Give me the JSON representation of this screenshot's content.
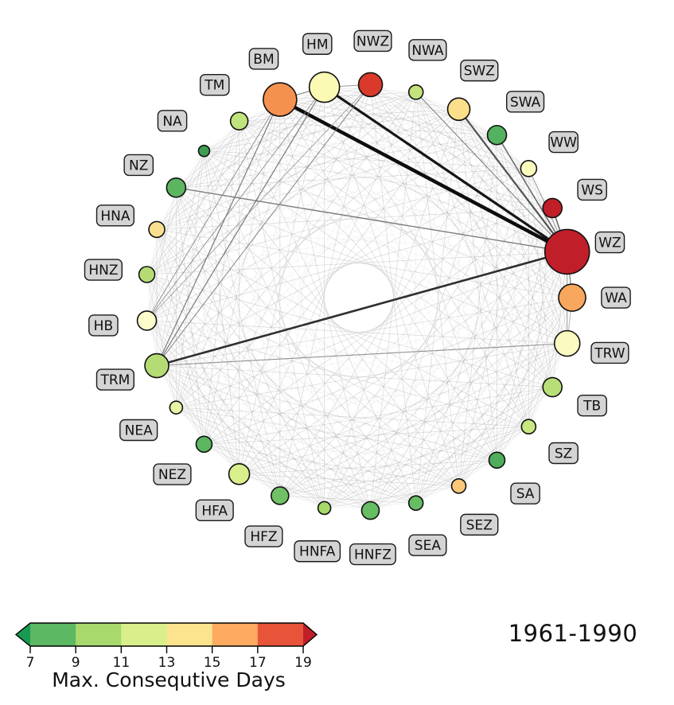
{
  "title": {
    "year_range": "1961-1990"
  },
  "colorbar": {
    "label": "Max. Consequtive Days",
    "ticks": [
      7,
      9,
      11,
      13,
      15,
      17,
      19
    ],
    "segment_colors": [
      "#5db863",
      "#a8d96d",
      "#d9ef8b",
      "#fbe48d",
      "#fcab60",
      "#e8543a"
    ],
    "under_arrow_color": "#189a50",
    "over_arrow_color": "#c01f2a"
  },
  "chart_data": {
    "type": "network",
    "layout": "circular",
    "title": "1961-1990",
    "value_label": "Max. Consequtive Days",
    "value_range": [
      7,
      19
    ],
    "nodes": [
      {
        "id": "BM",
        "value": 16,
        "color": "#f5914f",
        "radius": 21
      },
      {
        "id": "HM",
        "value": 13,
        "color": "#fbfab4",
        "radius": 19
      },
      {
        "id": "NWZ",
        "value": 18,
        "color": "#d93a2b",
        "radius": 15
      },
      {
        "id": "NWA",
        "value": 10,
        "color": "#c3e47d",
        "radius": 9
      },
      {
        "id": "SWZ",
        "value": 14,
        "color": "#fbdf8b",
        "radius": 14
      },
      {
        "id": "SWA",
        "value": 8,
        "color": "#53b15f",
        "radius": 12
      },
      {
        "id": "WW",
        "value": 13,
        "color": "#fdfdbe",
        "radius": 10
      },
      {
        "id": "WS",
        "value": 19,
        "color": "#c01f2a",
        "radius": 12
      },
      {
        "id": "WZ",
        "value": 19,
        "color": "#c01f2a",
        "radius": 28
      },
      {
        "id": "WA",
        "value": 16,
        "color": "#f9a75e",
        "radius": 17
      },
      {
        "id": "TRW",
        "value": 13,
        "color": "#fbfbc1",
        "radius": 16
      },
      {
        "id": "TB",
        "value": 10,
        "color": "#b8df77",
        "radius": 12
      },
      {
        "id": "SZ",
        "value": 10,
        "color": "#c9e680",
        "radius": 9
      },
      {
        "id": "SA",
        "value": 8,
        "color": "#4fae5c",
        "radius": 10
      },
      {
        "id": "SEZ",
        "value": 15,
        "color": "#fbc87a",
        "radius": 9
      },
      {
        "id": "SEA",
        "value": 8,
        "color": "#66bd63",
        "radius": 9
      },
      {
        "id": "HNFZ",
        "value": 8,
        "color": "#66bd63",
        "radius": 11
      },
      {
        "id": "HNFA",
        "value": 9,
        "color": "#a6d96a",
        "radius": 8
      },
      {
        "id": "HFZ",
        "value": 8,
        "color": "#70c165",
        "radius": 11
      },
      {
        "id": "HFA",
        "value": 11,
        "color": "#d9ef8b",
        "radius": 13
      },
      {
        "id": "NEZ",
        "value": 8,
        "color": "#5cb660",
        "radius": 10
      },
      {
        "id": "NEA",
        "value": 11,
        "color": "#e7f4a3",
        "radius": 8
      },
      {
        "id": "TRM",
        "value": 10,
        "color": "#b5dc74",
        "radius": 15
      },
      {
        "id": "HB",
        "value": 13,
        "color": "#fdfccb",
        "radius": 12
      },
      {
        "id": "HNZ",
        "value": 10,
        "color": "#b5dc74",
        "radius": 10
      },
      {
        "id": "HNA",
        "value": 14,
        "color": "#fae08e",
        "radius": 10
      },
      {
        "id": "NZ",
        "value": 8,
        "color": "#5cb660",
        "radius": 12
      },
      {
        "id": "NA",
        "value": 7,
        "color": "#3f9e52",
        "radius": 7
      },
      {
        "id": "TM",
        "value": 10,
        "color": "#c0e47d",
        "radius": 11
      }
    ],
    "strong_edges": [
      {
        "source": "BM",
        "target": "WZ",
        "width": 4.5,
        "color": "#0d0d0d",
        "opacity": 1
      },
      {
        "source": "HM",
        "target": "WZ",
        "width": 3.2,
        "color": "#161616",
        "opacity": 1
      },
      {
        "source": "TRM",
        "target": "WZ",
        "width": 2.6,
        "color": "#2e2e2e",
        "opacity": 1
      },
      {
        "source": "SWZ",
        "target": "WZ",
        "width": 2.2,
        "color": "#4a4a4a",
        "opacity": 0.95
      },
      {
        "source": "WS",
        "target": "WZ",
        "width": 1.6,
        "color": "#5a5a5a",
        "opacity": 0.9
      },
      {
        "source": "SWA",
        "target": "WZ",
        "width": 1.6,
        "color": "#606060",
        "opacity": 0.9
      },
      {
        "source": "NZ",
        "target": "WZ",
        "width": 1.4,
        "color": "#6a6a6a",
        "opacity": 0.85
      },
      {
        "source": "NWA",
        "target": "WZ",
        "width": 1.2,
        "color": "#757575",
        "opacity": 0.8
      },
      {
        "source": "WW",
        "target": "WZ",
        "width": 1.0,
        "color": "#808080",
        "opacity": 0.8
      },
      {
        "source": "BM",
        "target": "HM",
        "width": 1.2,
        "color": "#707070",
        "opacity": 0.85
      },
      {
        "source": "HM",
        "target": "NWZ",
        "width": 1.0,
        "color": "#808080",
        "opacity": 0.8
      },
      {
        "source": "BM",
        "target": "TRM",
        "width": 1.3,
        "color": "#6f6f6f",
        "opacity": 0.85
      },
      {
        "source": "HM",
        "target": "TRM",
        "width": 1.3,
        "color": "#6f6f6f",
        "opacity": 0.85
      },
      {
        "source": "NWZ",
        "target": "TRM",
        "width": 1.1,
        "color": "#7a7a7a",
        "opacity": 0.8
      },
      {
        "source": "BM",
        "target": "HB",
        "width": 1.0,
        "color": "#858585",
        "opacity": 0.8
      },
      {
        "source": "HM",
        "target": "HB",
        "width": 1.0,
        "color": "#858585",
        "opacity": 0.8
      },
      {
        "source": "NWZ",
        "target": "HB",
        "width": 0.9,
        "color": "#8f8f8f",
        "opacity": 0.75
      },
      {
        "source": "TRM",
        "target": "TRW",
        "width": 1.1,
        "color": "#7a7a7a",
        "opacity": 0.8
      },
      {
        "source": "WZ",
        "target": "WA",
        "width": 1.3,
        "color": "#6f6f6f",
        "opacity": 0.85
      },
      {
        "source": "WZ",
        "target": "TRW",
        "width": 1.0,
        "color": "#858585",
        "opacity": 0.8
      },
      {
        "source": "WA",
        "target": "TRW",
        "width": 0.9,
        "color": "#8f8f8f",
        "opacity": 0.75
      }
    ],
    "background_web": [
      {
        "offsets": [
          3,
          5,
          6,
          8,
          9,
          11,
          13
        ],
        "width": 0.8,
        "color": "#888888",
        "opacity": 0.28
      },
      {
        "offsets": [
          2,
          4,
          7,
          10,
          12
        ],
        "width": 0.7,
        "color": "#999999",
        "opacity": 0.13
      }
    ],
    "label_box": {
      "fill": "#d4d4d4",
      "stroke": "#1a1a1a",
      "text_color": "#111111"
    }
  }
}
